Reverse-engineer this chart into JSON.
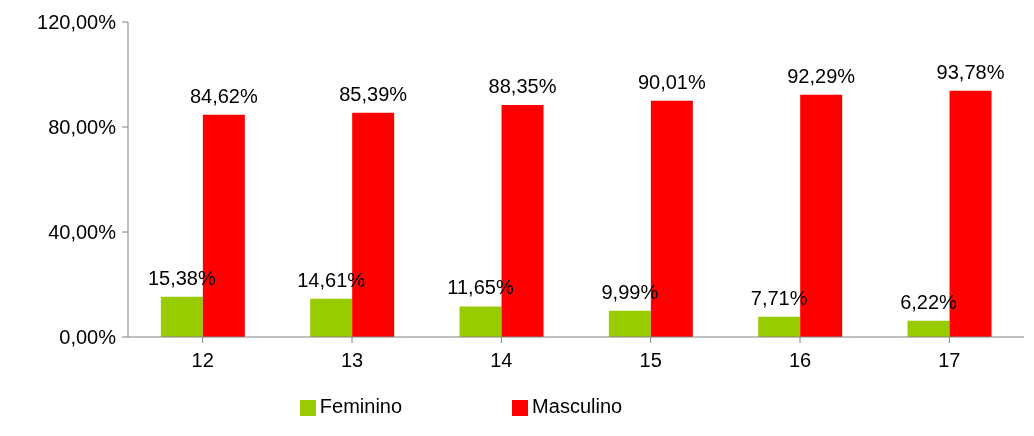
{
  "chart_data": {
    "type": "bar",
    "categories": [
      "12",
      "13",
      "14",
      "15",
      "16",
      "17"
    ],
    "series": [
      {
        "name": "Feminino",
        "color": "#99cc00",
        "values": [
          15.38,
          14.61,
          11.65,
          9.99,
          7.71,
          6.22
        ],
        "value_labels": [
          "15,38%",
          "14,61%",
          "11,65%",
          "9,99%",
          "7,71%",
          "6,22%"
        ]
      },
      {
        "name": "Masculino",
        "color": "#ff0000",
        "values": [
          84.62,
          85.39,
          88.35,
          90.01,
          92.29,
          93.78
        ],
        "value_labels": [
          "84,62%",
          "85,39%",
          "88,35%",
          "90,01%",
          "92,29%",
          "93,78%"
        ]
      }
    ],
    "ylim": [
      0,
      120
    ],
    "yticks": [
      {
        "value": 0,
        "label": "0,00%"
      },
      {
        "value": 40,
        "label": "40,00%"
      },
      {
        "value": 80,
        "label": "80,00%"
      },
      {
        "value": 120,
        "label": "120,00%"
      }
    ],
    "grid": false,
    "legend": "bottom"
  }
}
